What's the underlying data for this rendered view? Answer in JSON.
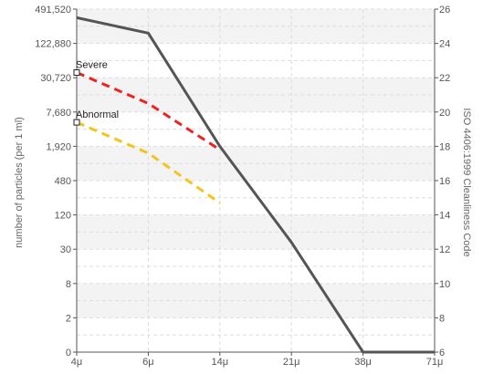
{
  "chart_data": {
    "type": "line",
    "categories": [
      "4μ",
      "6μ",
      "14μ",
      "21μ",
      "38μ",
      "71μ"
    ],
    "left_ticks": [
      "0",
      "2",
      "8",
      "30",
      "120",
      "480",
      "1,920",
      "7,680",
      "30,720",
      "122,880",
      "491,520"
    ],
    "right_ticks": [
      "6",
      "8",
      "10",
      "12",
      "14",
      "16",
      "18",
      "20",
      "22",
      "24",
      "26"
    ],
    "ylabel_left": "number of particles (per 1 ml)",
    "ylabel_right": "ISO 4406:1999 Cleanliness Code",
    "yscale": "log2",
    "ylim_left": [
      0,
      491520
    ],
    "ylim_right": [
      6,
      26
    ],
    "grid": true,
    "series": [
      {
        "name": "Severe",
        "color": "#ee2222",
        "dashed": true,
        "x": [
          "4μ",
          "6μ",
          "14μ"
        ],
        "code": [
          22.3,
          20.5,
          17.8
        ]
      },
      {
        "name": "Abnormal",
        "color": "#f5c41a",
        "dashed": true,
        "x": [
          "4μ",
          "6μ",
          "14μ"
        ],
        "code": [
          19.4,
          17.6,
          14.7
        ]
      },
      {
        "x": [
          "4μ",
          "6μ",
          "14μ",
          "21μ",
          "38μ",
          "71μ"
        ],
        "code": [
          25.5,
          24.6,
          18.0,
          12.4,
          6.0,
          6.0
        ],
        "color": "#555555",
        "dashed": false
      }
    ]
  }
}
